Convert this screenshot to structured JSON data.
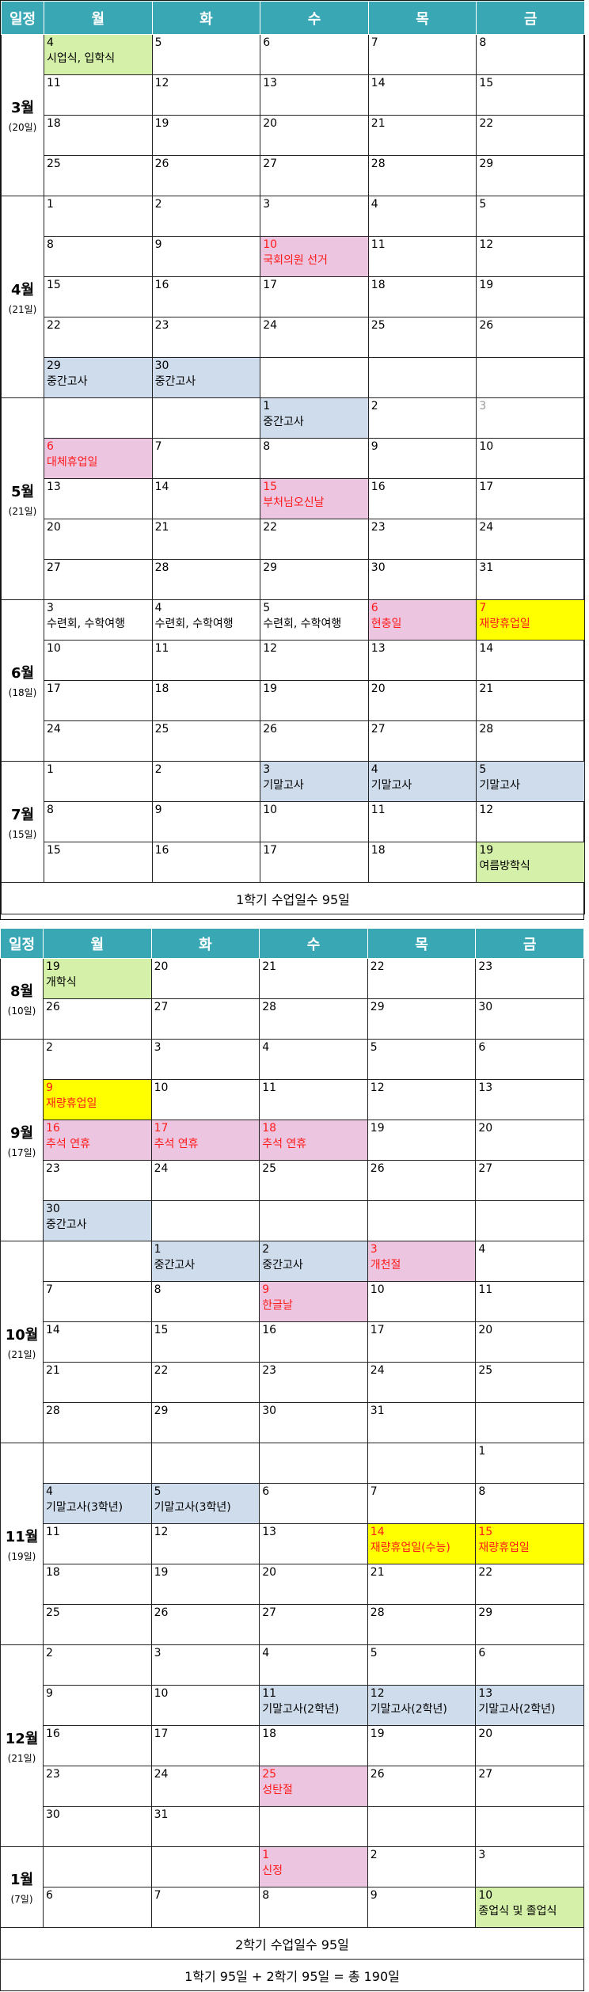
{
  "headers": [
    "일정",
    "월",
    "화",
    "수",
    "목",
    "금"
  ],
  "semester1": {
    "months": [
      {
        "name": "3월",
        "days": "(20일)",
        "weeks": [
          [
            {
              "d": "4",
              "e": "시업식, 입학식",
              "c": "green"
            },
            {
              "d": "5"
            },
            {
              "d": "6"
            },
            {
              "d": "7"
            },
            {
              "d": "8"
            }
          ],
          [
            {
              "d": "11"
            },
            {
              "d": "12"
            },
            {
              "d": "13"
            },
            {
              "d": "14"
            },
            {
              "d": "15"
            }
          ],
          [
            {
              "d": "18"
            },
            {
              "d": "19"
            },
            {
              "d": "20"
            },
            {
              "d": "21"
            },
            {
              "d": "22"
            }
          ],
          [
            {
              "d": "25"
            },
            {
              "d": "26"
            },
            {
              "d": "27"
            },
            {
              "d": "28"
            },
            {
              "d": "29"
            }
          ]
        ]
      },
      {
        "name": "4월",
        "days": "(21일)",
        "weeks": [
          [
            {
              "d": "1"
            },
            {
              "d": "2"
            },
            {
              "d": "3"
            },
            {
              "d": "4"
            },
            {
              "d": "5"
            }
          ],
          [
            {
              "d": "8"
            },
            {
              "d": "9"
            },
            {
              "d": "10",
              "e": "국회의원 선거",
              "c": "pink",
              "r": true
            },
            {
              "d": "11"
            },
            {
              "d": "12"
            }
          ],
          [
            {
              "d": "15"
            },
            {
              "d": "16"
            },
            {
              "d": "17"
            },
            {
              "d": "18"
            },
            {
              "d": "19"
            }
          ],
          [
            {
              "d": "22"
            },
            {
              "d": "23"
            },
            {
              "d": "24"
            },
            {
              "d": "25"
            },
            {
              "d": "26"
            }
          ],
          [
            {
              "d": "29",
              "e": "중간고사",
              "c": "blue"
            },
            {
              "d": "30",
              "e": "중간고사",
              "c": "blue"
            },
            {
              "d": ""
            },
            {
              "d": ""
            },
            {
              "d": ""
            }
          ]
        ]
      },
      {
        "name": "5월",
        "days": "(21일)",
        "weeks": [
          [
            {
              "d": ""
            },
            {
              "d": ""
            },
            {
              "d": "1",
              "e": "중간고사",
              "c": "blue"
            },
            {
              "d": "2"
            },
            {
              "d": "3",
              "g": true
            }
          ],
          [
            {
              "d": "6",
              "e": "대체휴업일",
              "c": "pink",
              "r": true
            },
            {
              "d": "7"
            },
            {
              "d": "8"
            },
            {
              "d": "9"
            },
            {
              "d": "10"
            }
          ],
          [
            {
              "d": "13"
            },
            {
              "d": "14"
            },
            {
              "d": "15",
              "e": "부처님오신날",
              "c": "pink",
              "r": true
            },
            {
              "d": "16"
            },
            {
              "d": "17"
            }
          ],
          [
            {
              "d": "20"
            },
            {
              "d": "21"
            },
            {
              "d": "22"
            },
            {
              "d": "23"
            },
            {
              "d": "24"
            }
          ],
          [
            {
              "d": "27"
            },
            {
              "d": "28"
            },
            {
              "d": "29"
            },
            {
              "d": "30"
            },
            {
              "d": "31"
            }
          ]
        ]
      },
      {
        "name": "6월",
        "days": "(18일)",
        "weeks": [
          [
            {
              "d": "3",
              "e": "수련회, 수학여행"
            },
            {
              "d": "4",
              "e": "수련회, 수학여행"
            },
            {
              "d": "5",
              "e": "수련회, 수학여행"
            },
            {
              "d": "6",
              "e": "현충일",
              "c": "pink",
              "r": true
            },
            {
              "d": "7",
              "e": "재량휴업일",
              "c": "yellow",
              "r": true
            }
          ],
          [
            {
              "d": "10"
            },
            {
              "d": "11"
            },
            {
              "d": "12"
            },
            {
              "d": "13"
            },
            {
              "d": "14"
            }
          ],
          [
            {
              "d": "17"
            },
            {
              "d": "18"
            },
            {
              "d": "19"
            },
            {
              "d": "20"
            },
            {
              "d": "21"
            }
          ],
          [
            {
              "d": "24"
            },
            {
              "d": "25"
            },
            {
              "d": "26"
            },
            {
              "d": "27"
            },
            {
              "d": "28"
            }
          ]
        ]
      },
      {
        "name": "7월",
        "days": "(15일)",
        "weeks": [
          [
            {
              "d": "1"
            },
            {
              "d": "2"
            },
            {
              "d": "3",
              "e": "기말고사",
              "c": "blue"
            },
            {
              "d": "4",
              "e": "기말고사",
              "c": "blue"
            },
            {
              "d": "5",
              "e": "기말고사",
              "c": "blue"
            }
          ],
          [
            {
              "d": "8"
            },
            {
              "d": "9"
            },
            {
              "d": "10"
            },
            {
              "d": "11"
            },
            {
              "d": "12"
            }
          ],
          [
            {
              "d": "15"
            },
            {
              "d": "16"
            },
            {
              "d": "17"
            },
            {
              "d": "18"
            },
            {
              "d": "19",
              "e": "여름방학식",
              "c": "green"
            }
          ]
        ]
      }
    ],
    "summary": [
      "1학기 수업일수 95일"
    ]
  },
  "semester2": {
    "months": [
      {
        "name": "8월",
        "days": "(10일)",
        "weeks": [
          [
            {
              "d": "19",
              "e": "개학식",
              "c": "green"
            },
            {
              "d": "20"
            },
            {
              "d": "21"
            },
            {
              "d": "22"
            },
            {
              "d": "23"
            }
          ],
          [
            {
              "d": "26"
            },
            {
              "d": "27"
            },
            {
              "d": "28"
            },
            {
              "d": "29"
            },
            {
              "d": "30"
            }
          ]
        ]
      },
      {
        "name": "9월",
        "days": "(17일)",
        "weeks": [
          [
            {
              "d": "2"
            },
            {
              "d": "3"
            },
            {
              "d": "4"
            },
            {
              "d": "5"
            },
            {
              "d": "6"
            }
          ],
          [
            {
              "d": "9",
              "e": "재량휴업일",
              "c": "yellow",
              "r": true
            },
            {
              "d": "10"
            },
            {
              "d": "11"
            },
            {
              "d": "12"
            },
            {
              "d": "13"
            }
          ],
          [
            {
              "d": "16",
              "e": "추석 연휴",
              "c": "pink",
              "r": true
            },
            {
              "d": "17",
              "e": "추석 연휴",
              "c": "pink",
              "r": true
            },
            {
              "d": "18",
              "e": "추석 연휴",
              "c": "pink",
              "r": true
            },
            {
              "d": "19"
            },
            {
              "d": "20"
            }
          ],
          [
            {
              "d": "23"
            },
            {
              "d": "24"
            },
            {
              "d": "25"
            },
            {
              "d": "26"
            },
            {
              "d": "27"
            }
          ],
          [
            {
              "d": "30",
              "e": "중간고사",
              "c": "blue"
            },
            {
              "d": ""
            },
            {
              "d": ""
            },
            {
              "d": ""
            },
            {
              "d": ""
            }
          ]
        ]
      },
      {
        "name": "10월",
        "days": "(21일)",
        "weeks": [
          [
            {
              "d": ""
            },
            {
              "d": "1",
              "e": "중간고사",
              "c": "blue"
            },
            {
              "d": "2",
              "e": "중간고사",
              "c": "blue"
            },
            {
              "d": "3",
              "e": "개천절",
              "c": "pink",
              "r": true
            },
            {
              "d": "4"
            }
          ],
          [
            {
              "d": "7"
            },
            {
              "d": "8"
            },
            {
              "d": "9",
              "e": "한글날",
              "c": "pink",
              "r": true
            },
            {
              "d": "10"
            },
            {
              "d": "11"
            }
          ],
          [
            {
              "d": "14"
            },
            {
              "d": "15"
            },
            {
              "d": "16"
            },
            {
              "d": "17"
            },
            {
              "d": "20"
            }
          ],
          [
            {
              "d": "21"
            },
            {
              "d": "22"
            },
            {
              "d": "23"
            },
            {
              "d": "24"
            },
            {
              "d": "25"
            }
          ],
          [
            {
              "d": "28"
            },
            {
              "d": "29"
            },
            {
              "d": "30"
            },
            {
              "d": "31"
            },
            {
              "d": ""
            }
          ]
        ]
      },
      {
        "name": "11월",
        "days": "(19일)",
        "weeks": [
          [
            {
              "d": ""
            },
            {
              "d": ""
            },
            {
              "d": ""
            },
            {
              "d": ""
            },
            {
              "d": "1"
            }
          ],
          [
            {
              "d": "4",
              "e": "기말고사(3학년)",
              "c": "blue"
            },
            {
              "d": "5",
              "e": "기말고사(3학년)",
              "c": "blue"
            },
            {
              "d": "6"
            },
            {
              "d": "7"
            },
            {
              "d": "8"
            }
          ],
          [
            {
              "d": "11"
            },
            {
              "d": "12"
            },
            {
              "d": "13"
            },
            {
              "d": "14",
              "e": "재량휴업일(수능)",
              "c": "yellow",
              "r": true
            },
            {
              "d": "15",
              "e": "재량휴업일",
              "c": "yellow",
              "r": true
            }
          ],
          [
            {
              "d": "18"
            },
            {
              "d": "19"
            },
            {
              "d": "20"
            },
            {
              "d": "21"
            },
            {
              "d": "22"
            }
          ],
          [
            {
              "d": "25"
            },
            {
              "d": "26"
            },
            {
              "d": "27"
            },
            {
              "d": "28"
            },
            {
              "d": "29"
            }
          ]
        ]
      },
      {
        "name": "12월",
        "days": "(21일)",
        "weeks": [
          [
            {
              "d": "2"
            },
            {
              "d": "3"
            },
            {
              "d": "4"
            },
            {
              "d": "5"
            },
            {
              "d": "6"
            }
          ],
          [
            {
              "d": "9"
            },
            {
              "d": "10"
            },
            {
              "d": "11",
              "e": "기말고사(2학년)",
              "c": "blue"
            },
            {
              "d": "12",
              "e": "기말고사(2학년)",
              "c": "blue"
            },
            {
              "d": "13",
              "e": "기말고사(2학년)",
              "c": "blue"
            }
          ],
          [
            {
              "d": "16"
            },
            {
              "d": "17"
            },
            {
              "d": "18"
            },
            {
              "d": "19"
            },
            {
              "d": "20"
            }
          ],
          [
            {
              "d": "23"
            },
            {
              "d": "24"
            },
            {
              "d": "25",
              "e": "성탄절",
              "c": "pink",
              "r": true
            },
            {
              "d": "26"
            },
            {
              "d": "27"
            }
          ],
          [
            {
              "d": "30"
            },
            {
              "d": "31"
            },
            {
              "d": ""
            },
            {
              "d": ""
            },
            {
              "d": ""
            }
          ]
        ]
      },
      {
        "name": "1월",
        "days": "(7일)",
        "weeks": [
          [
            {
              "d": ""
            },
            {
              "d": ""
            },
            {
              "d": "1",
              "e": "신정",
              "c": "pink",
              "r": true
            },
            {
              "d": "2"
            },
            {
              "d": "3"
            }
          ],
          [
            {
              "d": "6"
            },
            {
              "d": "7"
            },
            {
              "d": "8"
            },
            {
              "d": "9"
            },
            {
              "d": "10",
              "e": "종업식 및 졸업식",
              "c": "green"
            }
          ]
        ]
      }
    ],
    "summary": [
      "2학기 수업일수 95일",
      "1학기 95일 + 2학기 95일 = 총 190일"
    ]
  }
}
